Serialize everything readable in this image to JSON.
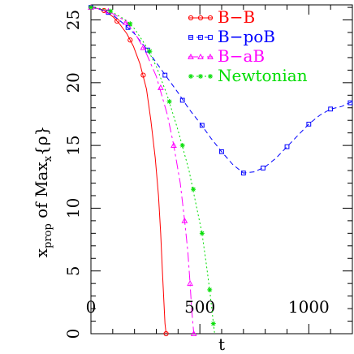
{
  "chart_data": {
    "type": "line",
    "title": "",
    "xlabel": "t",
    "ylabel": "x_prop of Max_x\\{ρ\\}",
    "ylabel_parts": {
      "main": "x",
      "sub": "prop",
      "mid": " of Max",
      "sub2": "x",
      "brace": "{ρ}"
    },
    "xlim": [
      0,
      1200
    ],
    "ylim": [
      0,
      26.2
    ],
    "x_ticks": [
      0,
      500,
      1000
    ],
    "x_tick_labels": [
      "0",
      "500",
      "1000"
    ],
    "y_ticks": [
      0,
      5,
      10,
      15,
      20,
      25
    ],
    "y_tick_labels": [
      "0",
      "5",
      "10",
      "15",
      "20",
      "25"
    ],
    "x_minor_step": 100,
    "y_minor_step": 1,
    "grid": false,
    "legend_position": "top-right",
    "series": [
      {
        "name": "B−B",
        "color": "#ff0000",
        "dash": "",
        "marker": "circle",
        "x": [
          0,
          20,
          45,
          75,
          105,
          135,
          165,
          195,
          225,
          255,
          275,
          295,
          310,
          320,
          328,
          335,
          340,
          345
        ],
        "y": [
          26.0,
          25.95,
          25.85,
          25.6,
          25.2,
          24.6,
          23.9,
          22.9,
          21.5,
          19.5,
          17.0,
          14.0,
          11.0,
          8.0,
          5.0,
          2.5,
          0.8,
          0.0
        ],
        "marker_x": [
          0,
          60,
          120,
          180,
          240,
          345
        ],
        "marker_y": [
          26.0,
          25.75,
          24.9,
          23.4,
          20.6,
          0.0
        ]
      },
      {
        "name": "B−poB",
        "color": "#0000ff",
        "dash": "6,4",
        "marker": "square",
        "x": [
          0,
          50,
          100,
          150,
          200,
          250,
          300,
          350,
          400,
          450,
          500,
          550,
          600,
          650,
          700,
          750,
          800,
          850,
          900,
          950,
          1000,
          1050,
          1100,
          1150,
          1200
        ],
        "y": [
          26.0,
          25.8,
          25.4,
          24.7,
          23.9,
          22.8,
          21.6,
          20.4,
          19.2,
          17.9,
          16.8,
          15.6,
          14.5,
          13.5,
          12.8,
          12.9,
          13.3,
          14.0,
          14.9,
          15.8,
          16.7,
          17.4,
          17.9,
          18.1,
          18.5
        ],
        "marker_x": [
          0,
          80,
          170,
          260,
          340,
          420,
          510,
          600,
          700,
          790,
          900,
          1000,
          1100,
          1190
        ],
        "marker_y": [
          26.0,
          25.6,
          24.4,
          22.6,
          20.6,
          18.6,
          16.6,
          14.5,
          12.8,
          13.2,
          14.9,
          16.7,
          17.9,
          18.4
        ]
      },
      {
        "name": "B−aB",
        "color": "#ff00ff",
        "dash": "12,4,3,4",
        "marker": "triangle",
        "x": [
          0,
          50,
          100,
          150,
          200,
          250,
          300,
          350,
          380,
          410,
          430,
          445,
          455,
          462,
          468,
          472
        ],
        "y": [
          26.0,
          25.85,
          25.5,
          25.0,
          24.0,
          22.5,
          20.5,
          17.5,
          15.0,
          12.0,
          9.0,
          6.5,
          4.0,
          2.0,
          0.8,
          0.0
        ],
        "marker_x": [
          0,
          80,
          160,
          240,
          320,
          380,
          430,
          455,
          472
        ],
        "marker_y": [
          26.0,
          25.7,
          24.8,
          22.8,
          19.6,
          15.0,
          9.0,
          4.0,
          0.0
        ]
      },
      {
        "name": "Newtonian",
        "color": "#00dd00",
        "dash": "2,3",
        "marker": "star",
        "x": [
          0,
          50,
          100,
          150,
          200,
          250,
          300,
          350,
          400,
          450,
          480,
          510,
          530,
          545,
          555,
          562,
          568
        ],
        "y": [
          26.0,
          25.9,
          25.6,
          25.1,
          24.3,
          23.0,
          21.3,
          19.0,
          16.2,
          13.0,
          10.5,
          8.0,
          5.5,
          3.5,
          2.0,
          0.8,
          0.0
        ],
        "marker_x": [
          0,
          90,
          180,
          270,
          360,
          420,
          470,
          510,
          545,
          562
        ],
        "marker_y": [
          26.0,
          25.7,
          24.7,
          22.5,
          18.5,
          15.0,
          11.5,
          8.0,
          3.5,
          0.8
        ]
      }
    ]
  }
}
